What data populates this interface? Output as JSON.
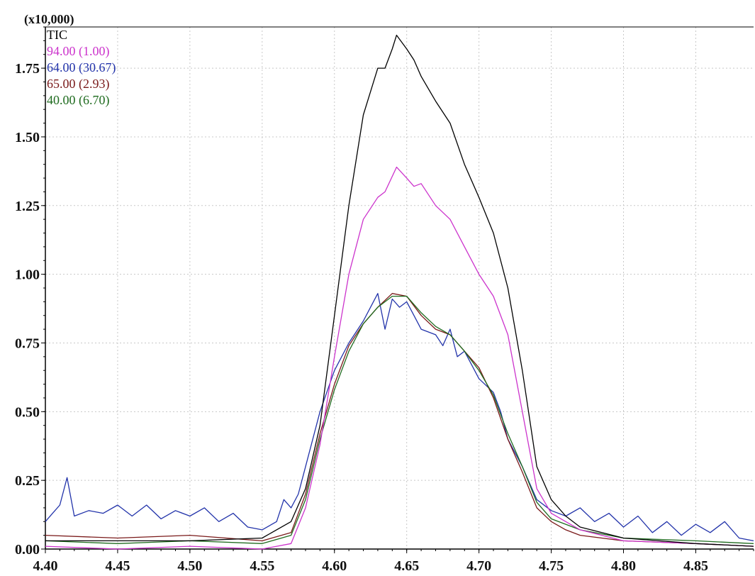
{
  "chart_data": {
    "type": "line",
    "title": "",
    "xlabel": "",
    "ylabel": "",
    "y_multiplier": "(x10,000)",
    "xlim": [
      4.4,
      4.89
    ],
    "ylim": [
      0.0,
      1.9
    ],
    "x_ticks": [
      "4.40",
      "4.45",
      "4.50",
      "4.55",
      "4.60",
      "4.65",
      "4.70",
      "4.75",
      "4.80",
      "4.85"
    ],
    "y_ticks": [
      "0.00",
      "0.25",
      "0.50",
      "0.75",
      "1.00",
      "1.25",
      "1.50",
      "1.75"
    ],
    "grid": true,
    "legend_position": "top-left",
    "series": [
      {
        "name": "TIC",
        "color": "#000000",
        "points": [
          [
            4.4,
            0.03
          ],
          [
            4.45,
            0.03
          ],
          [
            4.5,
            0.03
          ],
          [
            4.55,
            0.04
          ],
          [
            4.57,
            0.1
          ],
          [
            4.58,
            0.22
          ],
          [
            4.59,
            0.45
          ],
          [
            4.6,
            0.85
          ],
          [
            4.61,
            1.25
          ],
          [
            4.62,
            1.58
          ],
          [
            4.63,
            1.75
          ],
          [
            4.635,
            1.75
          ],
          [
            4.64,
            1.82
          ],
          [
            4.643,
            1.87
          ],
          [
            4.65,
            1.82
          ],
          [
            4.655,
            1.78
          ],
          [
            4.66,
            1.72
          ],
          [
            4.67,
            1.63
          ],
          [
            4.68,
            1.55
          ],
          [
            4.69,
            1.4
          ],
          [
            4.7,
            1.28
          ],
          [
            4.71,
            1.15
          ],
          [
            4.72,
            0.95
          ],
          [
            4.73,
            0.65
          ],
          [
            4.74,
            0.3
          ],
          [
            4.75,
            0.18
          ],
          [
            4.76,
            0.12
          ],
          [
            4.77,
            0.08
          ],
          [
            4.8,
            0.04
          ],
          [
            4.85,
            0.02
          ],
          [
            4.89,
            0.01
          ]
        ]
      },
      {
        "name": "94.00 (1.00)",
        "color": "#cc33cc",
        "points": [
          [
            4.4,
            0.01
          ],
          [
            4.45,
            0.0
          ],
          [
            4.5,
            0.01
          ],
          [
            4.55,
            0.0
          ],
          [
            4.57,
            0.02
          ],
          [
            4.58,
            0.15
          ],
          [
            4.59,
            0.38
          ],
          [
            4.6,
            0.7
          ],
          [
            4.61,
            1.0
          ],
          [
            4.62,
            1.2
          ],
          [
            4.63,
            1.28
          ],
          [
            4.635,
            1.3
          ],
          [
            4.643,
            1.39
          ],
          [
            4.65,
            1.35
          ],
          [
            4.655,
            1.32
          ],
          [
            4.66,
            1.33
          ],
          [
            4.67,
            1.25
          ],
          [
            4.68,
            1.2
          ],
          [
            4.69,
            1.1
          ],
          [
            4.7,
            1.0
          ],
          [
            4.71,
            0.92
          ],
          [
            4.72,
            0.78
          ],
          [
            4.73,
            0.5
          ],
          [
            4.74,
            0.22
          ],
          [
            4.75,
            0.13
          ],
          [
            4.76,
            0.1
          ],
          [
            4.77,
            0.07
          ],
          [
            4.8,
            0.03
          ],
          [
            4.85,
            0.02
          ],
          [
            4.89,
            0.01
          ]
        ]
      },
      {
        "name": "64.00 (30.67)",
        "color": "#2233aa",
        "points": [
          [
            4.4,
            0.1
          ],
          [
            4.405,
            0.13
          ],
          [
            4.41,
            0.16
          ],
          [
            4.415,
            0.26
          ],
          [
            4.42,
            0.12
          ],
          [
            4.43,
            0.14
          ],
          [
            4.44,
            0.13
          ],
          [
            4.45,
            0.16
          ],
          [
            4.46,
            0.12
          ],
          [
            4.47,
            0.16
          ],
          [
            4.48,
            0.11
          ],
          [
            4.49,
            0.14
          ],
          [
            4.5,
            0.12
          ],
          [
            4.51,
            0.15
          ],
          [
            4.52,
            0.1
          ],
          [
            4.53,
            0.13
          ],
          [
            4.54,
            0.08
          ],
          [
            4.55,
            0.07
          ],
          [
            4.56,
            0.1
          ],
          [
            4.565,
            0.18
          ],
          [
            4.57,
            0.15
          ],
          [
            4.575,
            0.2
          ],
          [
            4.58,
            0.3
          ],
          [
            4.59,
            0.5
          ],
          [
            4.6,
            0.65
          ],
          [
            4.61,
            0.75
          ],
          [
            4.62,
            0.83
          ],
          [
            4.625,
            0.88
          ],
          [
            4.63,
            0.93
          ],
          [
            4.635,
            0.8
          ],
          [
            4.64,
            0.91
          ],
          [
            4.645,
            0.88
          ],
          [
            4.65,
            0.9
          ],
          [
            4.655,
            0.85
          ],
          [
            4.66,
            0.8
          ],
          [
            4.67,
            0.78
          ],
          [
            4.675,
            0.74
          ],
          [
            4.68,
            0.8
          ],
          [
            4.685,
            0.7
          ],
          [
            4.69,
            0.72
          ],
          [
            4.7,
            0.62
          ],
          [
            4.71,
            0.57
          ],
          [
            4.715,
            0.5
          ],
          [
            4.72,
            0.4
          ],
          [
            4.73,
            0.3
          ],
          [
            4.74,
            0.18
          ],
          [
            4.75,
            0.14
          ],
          [
            4.76,
            0.12
          ],
          [
            4.77,
            0.15
          ],
          [
            4.78,
            0.1
          ],
          [
            4.79,
            0.13
          ],
          [
            4.8,
            0.08
          ],
          [
            4.81,
            0.12
          ],
          [
            4.82,
            0.06
          ],
          [
            4.83,
            0.1
          ],
          [
            4.84,
            0.05
          ],
          [
            4.85,
            0.09
          ],
          [
            4.86,
            0.06
          ],
          [
            4.87,
            0.1
          ],
          [
            4.88,
            0.04
          ],
          [
            4.89,
            0.03
          ]
        ]
      },
      {
        "name": "65.00 (2.93)",
        "color": "#7a1a1a",
        "points": [
          [
            4.4,
            0.05
          ],
          [
            4.45,
            0.04
          ],
          [
            4.5,
            0.05
          ],
          [
            4.55,
            0.03
          ],
          [
            4.57,
            0.06
          ],
          [
            4.58,
            0.2
          ],
          [
            4.59,
            0.42
          ],
          [
            4.6,
            0.6
          ],
          [
            4.61,
            0.74
          ],
          [
            4.62,
            0.82
          ],
          [
            4.63,
            0.88
          ],
          [
            4.64,
            0.93
          ],
          [
            4.65,
            0.92
          ],
          [
            4.66,
            0.85
          ],
          [
            4.67,
            0.8
          ],
          [
            4.68,
            0.78
          ],
          [
            4.69,
            0.72
          ],
          [
            4.7,
            0.66
          ],
          [
            4.71,
            0.55
          ],
          [
            4.72,
            0.4
          ],
          [
            4.73,
            0.28
          ],
          [
            4.74,
            0.15
          ],
          [
            4.75,
            0.1
          ],
          [
            4.76,
            0.07
          ],
          [
            4.77,
            0.05
          ],
          [
            4.8,
            0.03
          ],
          [
            4.85,
            0.02
          ],
          [
            4.89,
            0.01
          ]
        ]
      },
      {
        "name": "40.00 (6.70)",
        "color": "#1f6b1f",
        "points": [
          [
            4.4,
            0.03
          ],
          [
            4.45,
            0.02
          ],
          [
            4.5,
            0.03
          ],
          [
            4.55,
            0.02
          ],
          [
            4.57,
            0.05
          ],
          [
            4.58,
            0.18
          ],
          [
            4.59,
            0.4
          ],
          [
            4.6,
            0.58
          ],
          [
            4.61,
            0.72
          ],
          [
            4.62,
            0.82
          ],
          [
            4.63,
            0.88
          ],
          [
            4.64,
            0.92
          ],
          [
            4.65,
            0.92
          ],
          [
            4.66,
            0.86
          ],
          [
            4.67,
            0.81
          ],
          [
            4.68,
            0.78
          ],
          [
            4.69,
            0.72
          ],
          [
            4.7,
            0.65
          ],
          [
            4.71,
            0.56
          ],
          [
            4.72,
            0.42
          ],
          [
            4.73,
            0.3
          ],
          [
            4.74,
            0.17
          ],
          [
            4.75,
            0.11
          ],
          [
            4.76,
            0.09
          ],
          [
            4.77,
            0.07
          ],
          [
            4.8,
            0.04
          ],
          [
            4.85,
            0.03
          ],
          [
            4.89,
            0.02
          ]
        ]
      }
    ]
  }
}
